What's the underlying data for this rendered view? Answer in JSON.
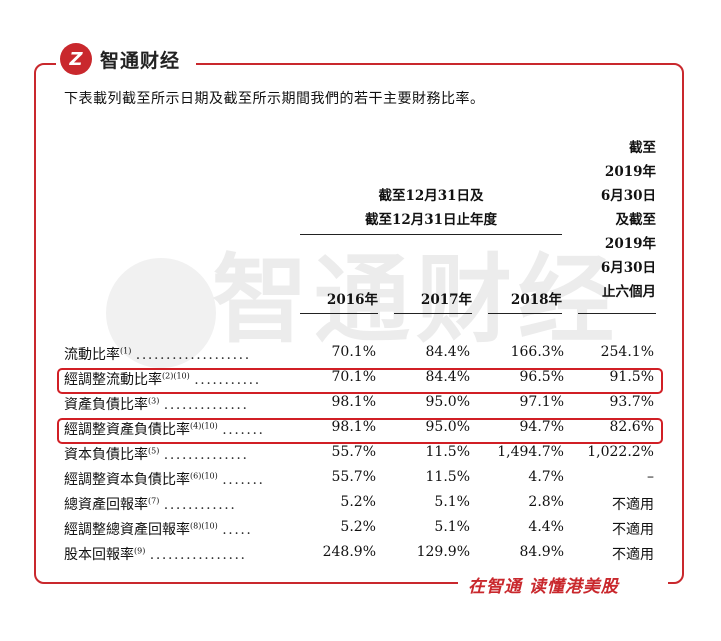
{
  "brand": {
    "logo_text": "智通财经",
    "logo_mark": "Z",
    "watermark": "智通财经",
    "slogan": "在智通 读懂港美股"
  },
  "intro": "下表載列截至所示日期及截至所示期間我們的若干主要財務比率。",
  "header": {
    "group_line1": "截至12月31日及",
    "group_line2": "截至12月31日止年度",
    "last_col": [
      "截至",
      "2019年",
      "6月30日",
      "及截至",
      "2019年",
      "6月30日",
      "止六個月"
    ],
    "years": [
      "2016年",
      "2017年",
      "2018年"
    ]
  },
  "rows": [
    {
      "label": "流動比率",
      "note": "(1)",
      "dots": "...................",
      "values": [
        "70.1%",
        "84.4%",
        "166.3%",
        "254.1%"
      ]
    },
    {
      "label": "經調整流動比率",
      "note": "(2)(10)",
      "dots": "...........",
      "values": [
        "70.1%",
        "84.4%",
        "96.5%",
        "91.5%"
      ]
    },
    {
      "label": "資產負債比率",
      "note": "(3)",
      "dots": "..............",
      "values": [
        "98.1%",
        "95.0%",
        "97.1%",
        "93.7%"
      ]
    },
    {
      "label": "經調整資產負債比率",
      "note": "(4)(10)",
      "dots": ".......",
      "values": [
        "98.1%",
        "95.0%",
        "94.7%",
        "82.6%"
      ]
    },
    {
      "label": "資本負債比率",
      "note": "(5)",
      "dots": "..............",
      "values": [
        "55.7%",
        "11.5%",
        "1,494.7%",
        "1,022.2%"
      ]
    },
    {
      "label": "經調整資本負債比率",
      "note": "(6)(10)",
      "dots": ".......",
      "values": [
        "55.7%",
        "11.5%",
        "4.7%",
        "–"
      ]
    },
    {
      "label": "總資產回報率",
      "note": "(7)",
      "dots": "............",
      "values": [
        "5.2%",
        "5.1%",
        "2.8%",
        "不適用"
      ]
    },
    {
      "label": "經調整總資產回報率",
      "note": "(8)(10)",
      "dots": ".....",
      "values": [
        "5.2%",
        "5.1%",
        "4.4%",
        "不適用"
      ]
    },
    {
      "label": "股本回報率",
      "note": "(9)",
      "dots": "................",
      "values": [
        "248.9%",
        "129.9%",
        "84.9%",
        "不適用"
      ]
    }
  ],
  "highlight_color": "#d11f25",
  "brand_color": "#c9282d"
}
